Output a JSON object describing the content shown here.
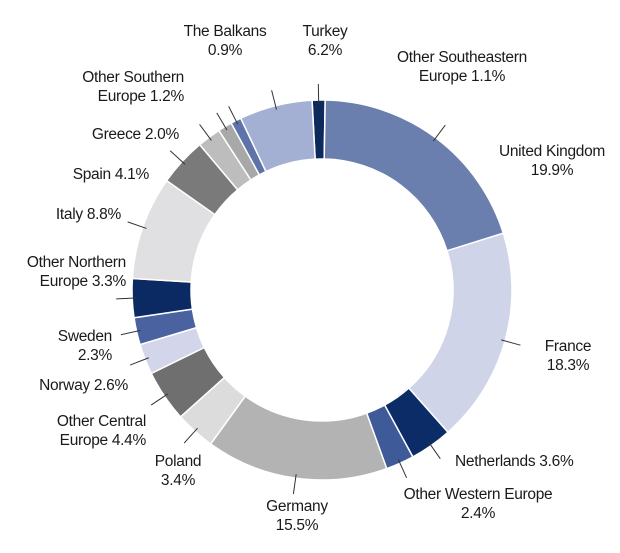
{
  "chart_data": {
    "type": "donut",
    "categories": [
      "Other Southeastern Europe",
      "United Kingdom",
      "France",
      "Netherlands",
      "Other Western Europe",
      "Germany",
      "Poland",
      "Other Central Europe",
      "Norway",
      "Sweden",
      "Other Northern Europe",
      "Italy",
      "Spain",
      "Greece",
      "Other Southern Europe",
      "The Balkans",
      "Turkey"
    ],
    "values": [
      1.1,
      19.9,
      18.3,
      3.6,
      2.4,
      15.5,
      3.4,
      4.4,
      2.6,
      2.3,
      3.3,
      8.8,
      4.1,
      2.0,
      1.2,
      0.9,
      6.2
    ],
    "value_labels": [
      "1.1%",
      "19.9%",
      "18.3%",
      "3.6%",
      "2.4%",
      "15.5%",
      "3.4%",
      "4.4%",
      "2.6%",
      "2.3%",
      "3.3%",
      "8.8%",
      "4.1%",
      "2.0%",
      "1.2%",
      "0.9%",
      "6.2%"
    ],
    "colors": [
      "#0d2a5c",
      "#6a7fae",
      "#d0d4e8",
      "#0b2c66",
      "#3f5a99",
      "#b3b3b3",
      "#dcdcdc",
      "#6f6f6f",
      "#d3d6ea",
      "#4a62a0",
      "#0b2a63",
      "#e0e0e2",
      "#7a7a7a",
      "#bdbdbd",
      "#a8a8a8",
      "#5d73a9",
      "#a3b0d3"
    ]
  }
}
